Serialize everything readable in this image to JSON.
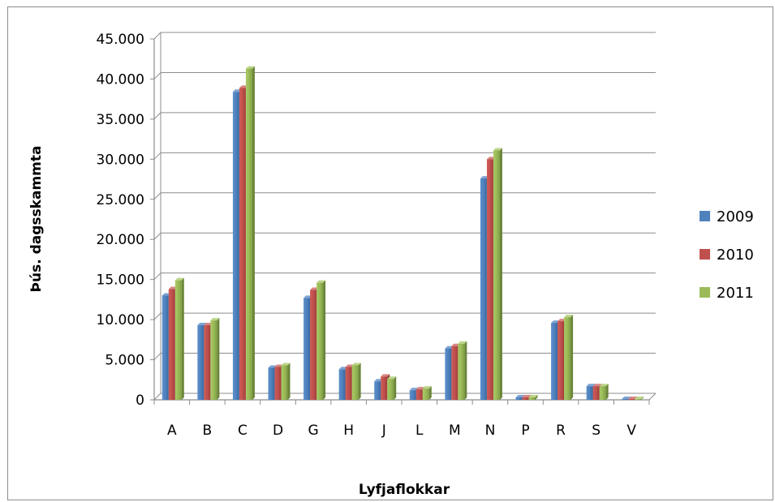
{
  "chart_data": {
    "type": "bar",
    "title": "",
    "xlabel": "Lyfjaflokkar",
    "ylabel": "Þús. dagsskammta",
    "ylim": [
      0,
      45000
    ],
    "yticks": [
      0,
      5000,
      10000,
      15000,
      20000,
      25000,
      30000,
      35000,
      40000,
      45000
    ],
    "ytick_labels": [
      "0",
      "5.000",
      "10.000",
      "15.000",
      "20.000",
      "25.000",
      "30.000",
      "35.000",
      "40.000",
      "45.000"
    ],
    "grid": true,
    "legend_position": "right",
    "categories": [
      "A",
      "B",
      "C",
      "D",
      "G",
      "H",
      "J",
      "L",
      "M",
      "N",
      "P",
      "R",
      "S",
      "V"
    ],
    "series": [
      {
        "name": "2009",
        "color": "#4F81BD",
        "values": [
          13000,
          9300,
          38400,
          4000,
          12700,
          3800,
          2300,
          1200,
          6400,
          27600,
          300,
          9600,
          1700,
          100
        ]
      },
      {
        "name": "2010",
        "color": "#C0504D",
        "values": [
          13800,
          9300,
          38900,
          4100,
          13700,
          4100,
          2900,
          1300,
          6700,
          30000,
          300,
          9800,
          1700,
          100
        ]
      },
      {
        "name": "2011",
        "color": "#9BBB59",
        "values": [
          14900,
          9900,
          41300,
          4300,
          14600,
          4300,
          2600,
          1400,
          7000,
          31100,
          300,
          10300,
          1700,
          100
        ]
      }
    ]
  }
}
